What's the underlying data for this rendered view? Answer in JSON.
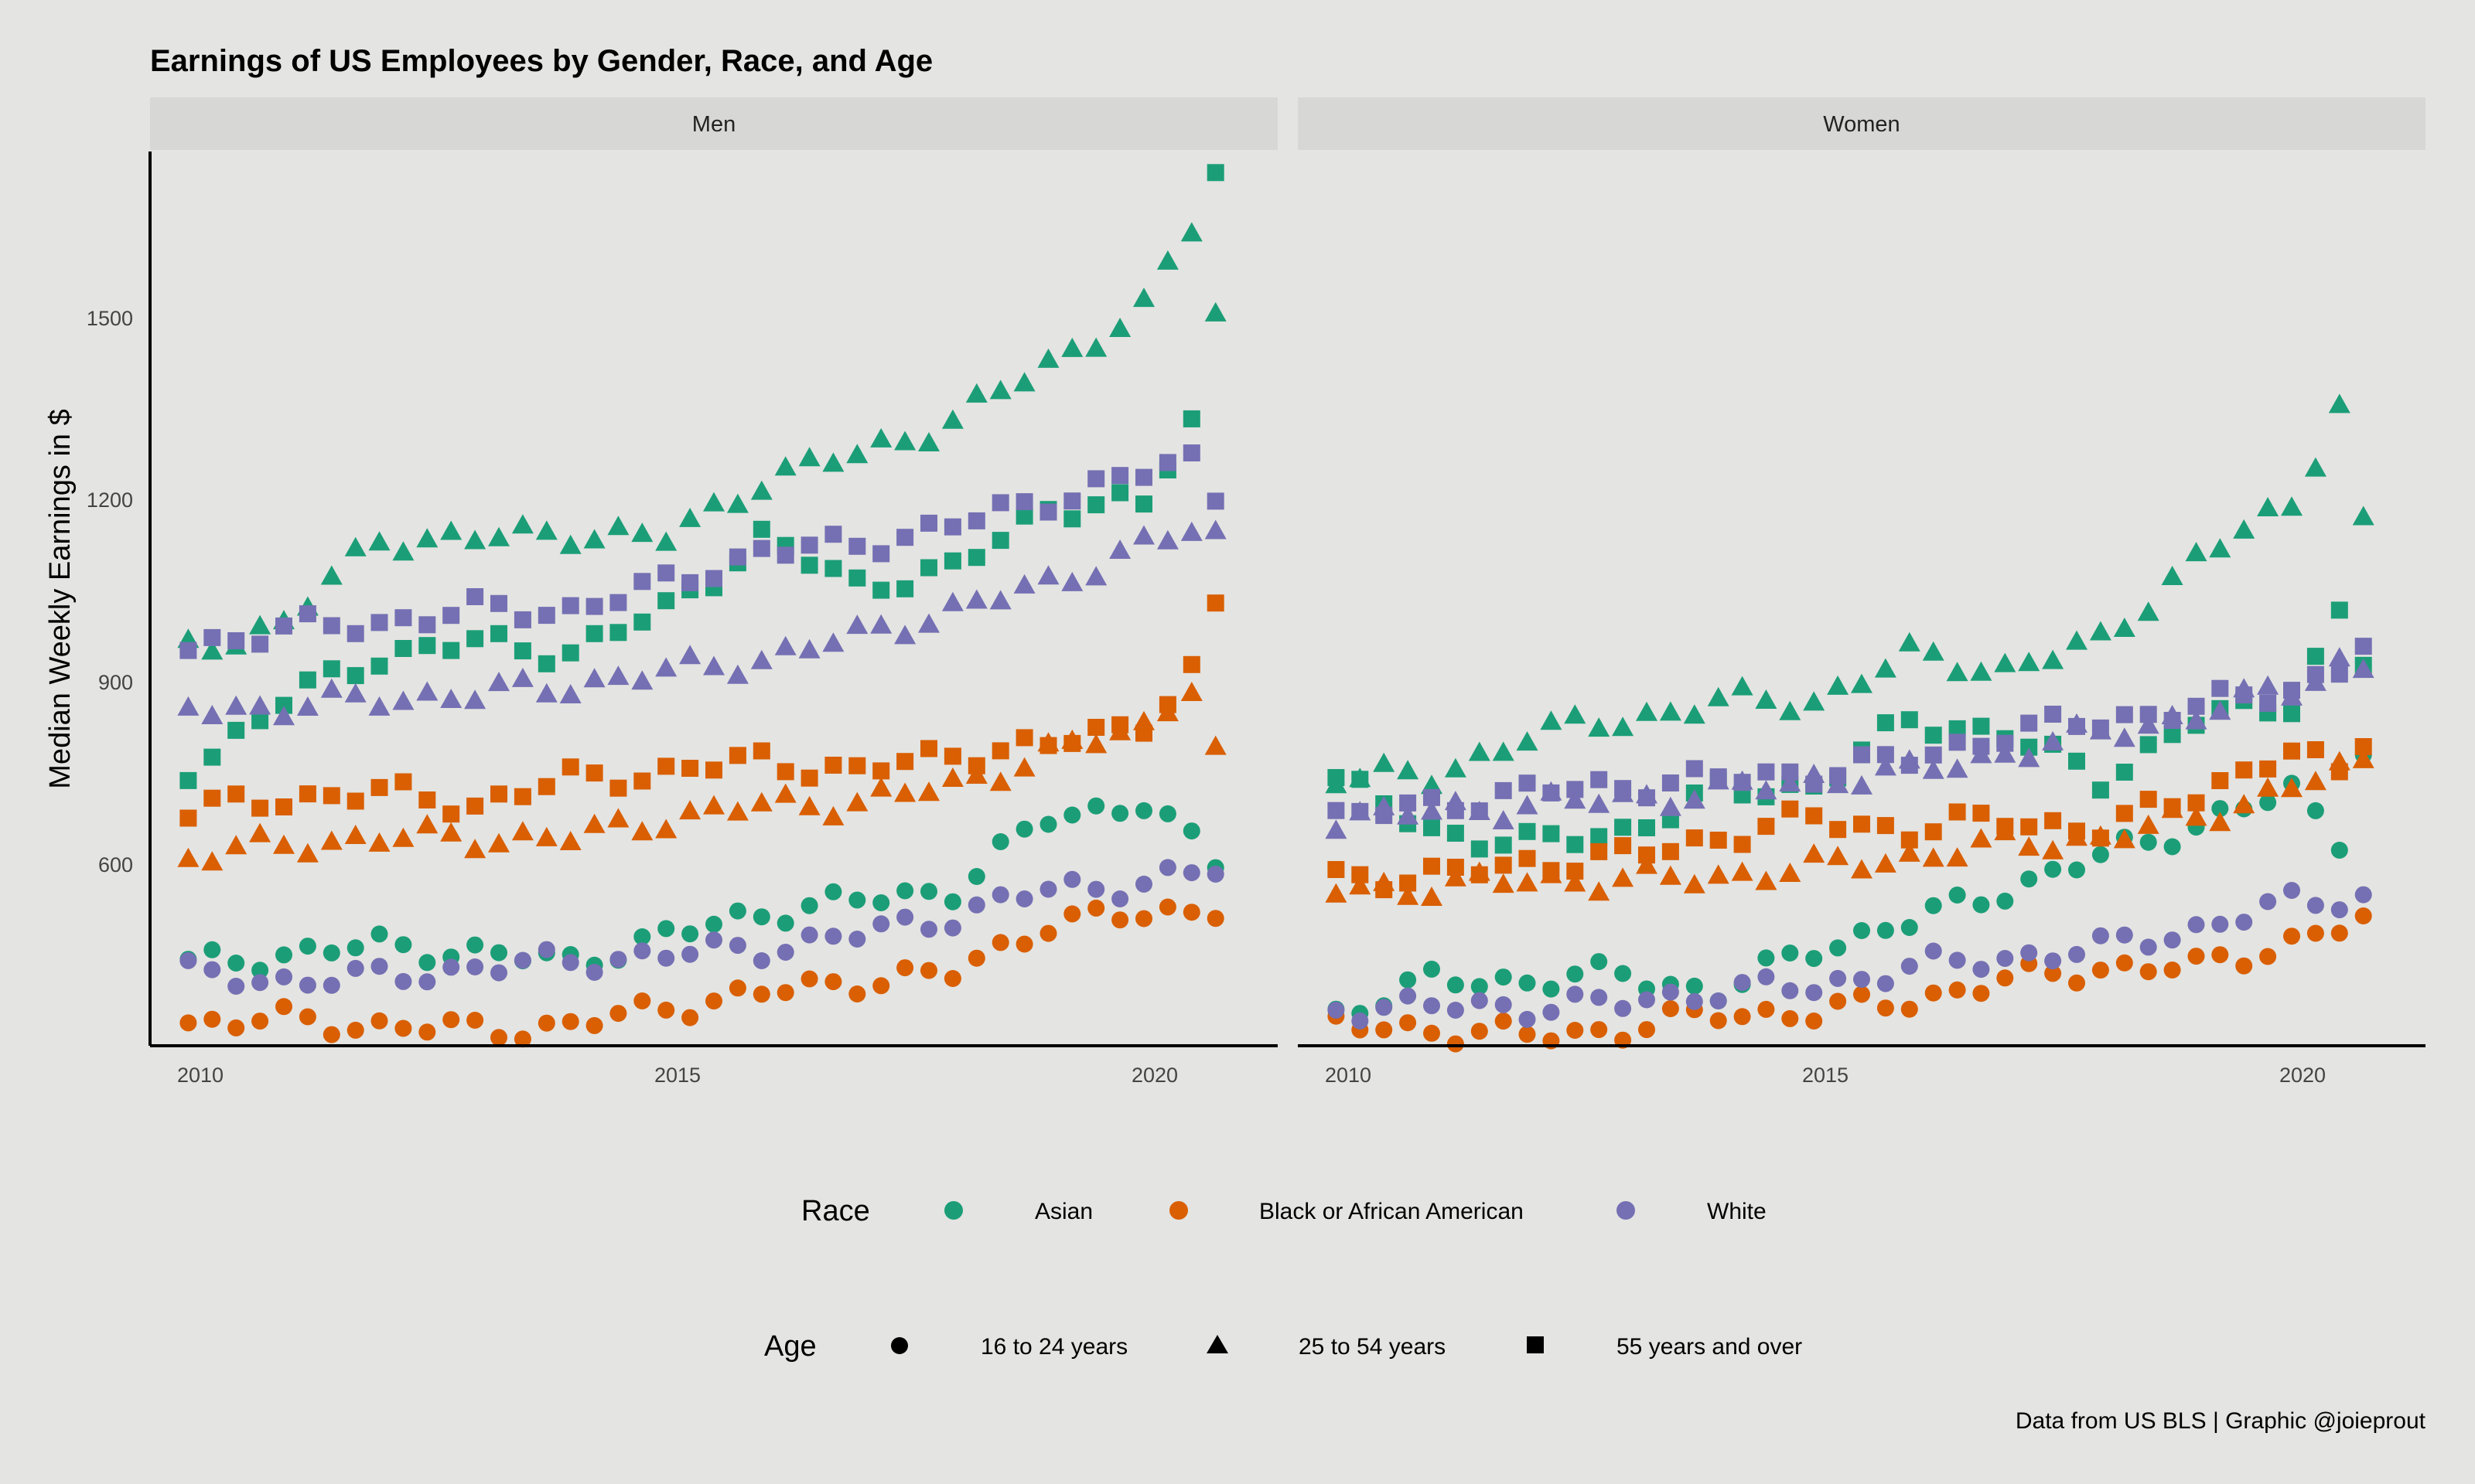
{
  "chart_data": {
    "type": "scatter",
    "title": "Earnings of US Employees by Gender, Race, and Age",
    "ylabel": "Median Weekly Earnings in $",
    "xlabel": "",
    "caption": "Data from US BLS | Graphic @joieprout",
    "panels": [
      "Men",
      "Women"
    ],
    "xlim": [
      2009.6,
      2021.4
    ],
    "ylim": [
      370,
      1745
    ],
    "xticks": [
      2010,
      2015,
      2020
    ],
    "yticks": [
      600,
      900,
      1200,
      1500
    ],
    "grid": false,
    "legend_position": "bottom",
    "race_legend": {
      "title": "Race",
      "items": [
        {
          "label": "Asian",
          "color": "#1b9e77"
        },
        {
          "label": "Black or African American",
          "color": "#d95f02"
        },
        {
          "label": "White",
          "color": "#7570b3"
        }
      ]
    },
    "age_legend": {
      "title": "Age",
      "items": [
        {
          "label": "16 to 24 years",
          "shape": "circle"
        },
        {
          "label": "25 to 54 years",
          "shape": "triangle"
        },
        {
          "label": "55 years and over",
          "shape": "square"
        }
      ]
    },
    "series": [
      {
        "panel": "Men",
        "race": "Asian",
        "age": "16 to 24 years",
        "anchors": [
          [
            2010.0,
            495
          ],
          [
            2012.0,
            525
          ],
          [
            2014.0,
            500
          ],
          [
            2016.0,
            575
          ],
          [
            2018.0,
            610
          ],
          [
            2019.0,
            720
          ],
          [
            2020.0,
            745
          ],
          [
            2020.75,
            650
          ]
        ]
      },
      {
        "panel": "Men",
        "race": "Asian",
        "age": "25 to 54 years",
        "anchors": [
          [
            2010.0,
            980
          ],
          [
            2011.0,
            1020
          ],
          [
            2012.0,
            1150
          ],
          [
            2013.0,
            1150
          ],
          [
            2014.0,
            1160
          ],
          [
            2015.0,
            1150
          ],
          [
            2016.0,
            1240
          ],
          [
            2017.0,
            1280
          ],
          [
            2018.0,
            1330
          ],
          [
            2019.0,
            1420
          ],
          [
            2020.0,
            1500
          ],
          [
            2020.5,
            1630
          ],
          [
            2020.75,
            1500
          ]
        ]
      },
      {
        "panel": "Men",
        "race": "Asian",
        "age": "55 years and over",
        "anchors": [
          [
            2010.0,
            795
          ],
          [
            2011.0,
            900
          ],
          [
            2012.0,
            970
          ],
          [
            2013.0,
            990
          ],
          [
            2014.0,
            975
          ],
          [
            2015.0,
            1040
          ],
          [
            2016.0,
            1150
          ],
          [
            2017.0,
            1080
          ],
          [
            2018.0,
            1100
          ],
          [
            2019.0,
            1200
          ],
          [
            2020.0,
            1200
          ],
          [
            2020.5,
            1330
          ],
          [
            2020.75,
            1710
          ]
        ]
      },
      {
        "panel": "Men",
        "race": "Black or African American",
        "age": "16 to 24 years",
        "anchors": [
          [
            2010.0,
            405
          ],
          [
            2011.0,
            410
          ],
          [
            2012.0,
            400
          ],
          [
            2013.0,
            395
          ],
          [
            2014.0,
            400
          ],
          [
            2015.0,
            430
          ],
          [
            2016.0,
            450
          ],
          [
            2017.0,
            470
          ],
          [
            2018.0,
            480
          ],
          [
            2019.0,
            560
          ],
          [
            2020.0,
            570
          ],
          [
            2020.75,
            585
          ]
        ]
      },
      {
        "panel": "Men",
        "race": "Black or African American",
        "age": "25 to 54 years",
        "anchors": [
          [
            2010.0,
            660
          ],
          [
            2011.0,
            680
          ],
          [
            2012.0,
            690
          ],
          [
            2013.0,
            690
          ],
          [
            2014.0,
            690
          ],
          [
            2015.0,
            720
          ],
          [
            2016.0,
            740
          ],
          [
            2017.0,
            745
          ],
          [
            2018.0,
            770
          ],
          [
            2019.0,
            820
          ],
          [
            2020.0,
            860
          ],
          [
            2020.5,
            930
          ],
          [
            2020.75,
            820
          ]
        ]
      },
      {
        "panel": "Men",
        "race": "Black or African American",
        "age": "55 years and over",
        "anchors": [
          [
            2010.0,
            730
          ],
          [
            2011.0,
            750
          ],
          [
            2012.0,
            760
          ],
          [
            2013.0,
            740
          ],
          [
            2014.0,
            780
          ],
          [
            2015.0,
            790
          ],
          [
            2016.0,
            810
          ],
          [
            2017.0,
            790
          ],
          [
            2018.0,
            820
          ],
          [
            2019.0,
            830
          ],
          [
            2020.0,
            870
          ],
          [
            2020.5,
            940
          ],
          [
            2020.75,
            1040
          ]
        ]
      },
      {
        "panel": "Men",
        "race": "White",
        "age": "16 to 24 years",
        "anchors": [
          [
            2010.0,
            480
          ],
          [
            2011.0,
            470
          ],
          [
            2012.0,
            475
          ],
          [
            2013.0,
            490
          ],
          [
            2014.0,
            500
          ],
          [
            2015.0,
            510
          ],
          [
            2016.0,
            520
          ],
          [
            2017.0,
            540
          ],
          [
            2018.0,
            570
          ],
          [
            2019.0,
            610
          ],
          [
            2020.0,
            620
          ],
          [
            2020.75,
            640
          ]
        ]
      },
      {
        "panel": "Men",
        "race": "White",
        "age": "25 to 54 years",
        "anchors": [
          [
            2010.0,
            890
          ],
          [
            2011.0,
            890
          ],
          [
            2012.0,
            905
          ],
          [
            2013.0,
            910
          ],
          [
            2014.0,
            925
          ],
          [
            2015.0,
            945
          ],
          [
            2016.0,
            965
          ],
          [
            2017.0,
            1000
          ],
          [
            2018.0,
            1040
          ],
          [
            2019.0,
            1080
          ],
          [
            2020.0,
            1140
          ],
          [
            2020.5,
            1160
          ],
          [
            2020.75,
            1150
          ]
        ]
      },
      {
        "panel": "Men",
        "race": "White",
        "age": "55 years and over",
        "anchors": [
          [
            2010.0,
            985
          ],
          [
            2011.0,
            1010
          ],
          [
            2012.0,
            1020
          ],
          [
            2013.0,
            1040
          ],
          [
            2014.0,
            1040
          ],
          [
            2015.0,
            1080
          ],
          [
            2016.0,
            1130
          ],
          [
            2017.0,
            1140
          ],
          [
            2018.0,
            1170
          ],
          [
            2019.0,
            1210
          ],
          [
            2020.0,
            1250
          ],
          [
            2020.5,
            1270
          ],
          [
            2020.75,
            1220
          ]
        ]
      },
      {
        "panel": "Women",
        "race": "Asian",
        "age": "16 to 24 years",
        "anchors": [
          [
            2010.0,
            420
          ],
          [
            2011.0,
            470
          ],
          [
            2012.0,
            470
          ],
          [
            2013.0,
            480
          ],
          [
            2014.0,
            450
          ],
          [
            2015.0,
            520
          ],
          [
            2016.0,
            560
          ],
          [
            2017.0,
            610
          ],
          [
            2018.0,
            660
          ],
          [
            2019.0,
            710
          ],
          [
            2020.0,
            760
          ],
          [
            2020.5,
            690
          ],
          [
            2020.75,
            830
          ]
        ]
      },
      {
        "panel": "Women",
        "race": "Asian",
        "age": "25 to 54 years",
        "anchors": [
          [
            2010.0,
            790
          ],
          [
            2011.0,
            780
          ],
          [
            2012.0,
            850
          ],
          [
            2013.0,
            870
          ],
          [
            2014.0,
            900
          ],
          [
            2015.0,
            900
          ],
          [
            2016.0,
            970
          ],
          [
            2017.0,
            950
          ],
          [
            2018.0,
            990
          ],
          [
            2019.0,
            1120
          ],
          [
            2020.0,
            1200
          ],
          [
            2020.5,
            1360
          ],
          [
            2020.75,
            1170
          ]
        ]
      },
      {
        "panel": "Women",
        "race": "Asian",
        "age": "55 years and over",
        "anchors": [
          [
            2010.0,
            780
          ],
          [
            2011.0,
            700
          ],
          [
            2012.0,
            680
          ],
          [
            2013.0,
            700
          ],
          [
            2014.0,
            760
          ],
          [
            2015.0,
            770
          ],
          [
            2016.0,
            870
          ],
          [
            2017.0,
            850
          ],
          [
            2018.0,
            780
          ],
          [
            2019.0,
            870
          ],
          [
            2020.0,
            900
          ],
          [
            2020.5,
            1030
          ],
          [
            2020.75,
            960
          ]
        ]
      },
      {
        "panel": "Women",
        "race": "Black or African American",
        "age": "16 to 24 years",
        "anchors": [
          [
            2010.0,
            400
          ],
          [
            2011.0,
            395
          ],
          [
            2012.0,
            385
          ],
          [
            2013.0,
            395
          ],
          [
            2014.0,
            420
          ],
          [
            2015.0,
            420
          ],
          [
            2016.0,
            440
          ],
          [
            2017.0,
            470
          ],
          [
            2018.0,
            490
          ],
          [
            2019.0,
            490
          ],
          [
            2020.0,
            530
          ],
          [
            2020.75,
            560
          ]
        ]
      },
      {
        "panel": "Women",
        "race": "Black or African American",
        "age": "25 to 54 years",
        "anchors": [
          [
            2010.0,
            610
          ],
          [
            2011.0,
            615
          ],
          [
            2012.0,
            625
          ],
          [
            2013.0,
            625
          ],
          [
            2014.0,
            630
          ],
          [
            2015.0,
            645
          ],
          [
            2016.0,
            660
          ],
          [
            2017.0,
            680
          ],
          [
            2018.0,
            690
          ],
          [
            2019.0,
            720
          ],
          [
            2020.0,
            770
          ],
          [
            2020.5,
            790
          ],
          [
            2020.75,
            800
          ]
        ]
      },
      {
        "panel": "Women",
        "race": "Black or African American",
        "age": "55 years and over",
        "anchors": [
          [
            2010.0,
            630
          ],
          [
            2011.0,
            630
          ],
          [
            2012.0,
            650
          ],
          [
            2013.0,
            660
          ],
          [
            2014.0,
            690
          ],
          [
            2015.0,
            720
          ],
          [
            2016.0,
            700
          ],
          [
            2017.0,
            720
          ],
          [
            2018.0,
            700
          ],
          [
            2019.0,
            760
          ],
          [
            2020.0,
            820
          ],
          [
            2020.5,
            790
          ],
          [
            2020.75,
            850
          ]
        ]
      },
      {
        "panel": "Women",
        "race": "White",
        "age": "16 to 24 years",
        "anchors": [
          [
            2010.0,
            430
          ],
          [
            2011.0,
            430
          ],
          [
            2012.0,
            430
          ],
          [
            2013.0,
            435
          ],
          [
            2014.0,
            455
          ],
          [
            2015.0,
            460
          ],
          [
            2016.0,
            490
          ],
          [
            2017.0,
            505
          ],
          [
            2018.0,
            520
          ],
          [
            2019.0,
            550
          ],
          [
            2020.0,
            590
          ],
          [
            2020.75,
            600
          ]
        ]
      },
      {
        "panel": "Women",
        "race": "White",
        "age": "25 to 54 years",
        "anchors": [
          [
            2010.0,
            720
          ],
          [
            2011.0,
            730
          ],
          [
            2012.0,
            740
          ],
          [
            2013.0,
            750
          ],
          [
            2014.0,
            760
          ],
          [
            2015.0,
            780
          ],
          [
            2016.0,
            790
          ],
          [
            2017.0,
            820
          ],
          [
            2018.0,
            850
          ],
          [
            2019.0,
            880
          ],
          [
            2020.0,
            920
          ],
          [
            2020.5,
            960
          ],
          [
            2020.75,
            950
          ]
        ]
      },
      {
        "panel": "Women",
        "race": "White",
        "age": "55 years and over",
        "anchors": [
          [
            2010.0,
            720
          ],
          [
            2011.0,
            740
          ],
          [
            2012.0,
            760
          ],
          [
            2013.0,
            770
          ],
          [
            2014.0,
            780
          ],
          [
            2015.0,
            790
          ],
          [
            2016.0,
            810
          ],
          [
            2017.0,
            850
          ],
          [
            2018.0,
            870
          ],
          [
            2019.0,
            890
          ],
          [
            2020.0,
            920
          ],
          [
            2020.5,
            950
          ],
          [
            2020.75,
            990
          ]
        ]
      }
    ]
  }
}
